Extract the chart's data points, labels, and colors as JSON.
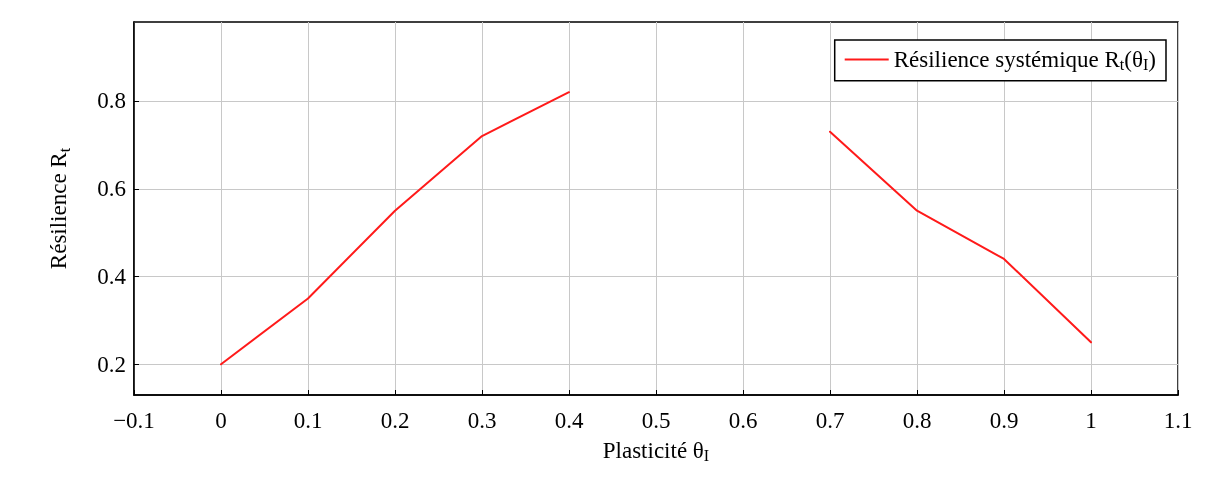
{
  "chart_data": {
    "type": "line",
    "xlabel": "Plasticité θ$_{I}$",
    "ylabel": "Résilience R$_{t}$",
    "x": [
      0,
      0.1,
      0.2,
      0.3,
      0.4,
      0.5,
      0.6,
      0.7,
      0.8,
      0.9,
      1
    ],
    "series": [
      {
        "name": "Résilience systémique R$_{t}$(θ$_{I}$)",
        "color": "#ff1a1a",
        "values": [
          0.2,
          0.35,
          0.55,
          0.72,
          0.82,
          null,
          null,
          0.73,
          0.55,
          0.44,
          0.25
        ]
      }
    ],
    "xlim": [
      -0.1,
      1.1
    ],
    "xticks": [
      -0.1,
      0,
      0.1,
      0.2,
      0.3,
      0.4,
      0.5,
      0.6,
      0.7,
      0.8,
      0.9,
      1,
      1.1
    ],
    "ylim": [
      0.13,
      0.98
    ],
    "yticks": [
      0.2,
      0.4,
      0.6,
      0.8
    ],
    "grid": true,
    "legend": "top right",
    "marker": "none",
    "line_style": "solid"
  }
}
